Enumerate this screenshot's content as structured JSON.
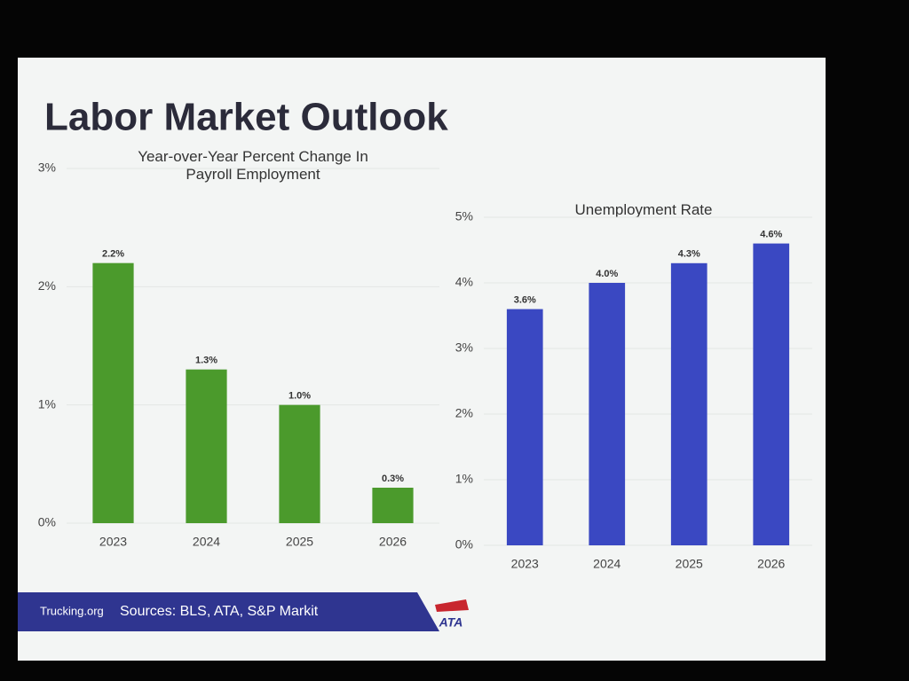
{
  "header": {
    "title": "Labor Market Outlook"
  },
  "footer": {
    "site": "Trucking.org",
    "sources": "Sources: BLS, ATA, S&P Markit",
    "logo": "ATA"
  },
  "chart_data": [
    {
      "type": "bar",
      "title": "Year-over-Year Percent Change In Payroll Employment",
      "categories": [
        "2023",
        "2024",
        "2025",
        "2026"
      ],
      "values": [
        2.2,
        1.3,
        1.0,
        0.3
      ],
      "value_labels": [
        "2.2%",
        "1.3%",
        "1.0%",
        "0.3%"
      ],
      "color": "#4b9a2c",
      "ylim": [
        0,
        3
      ],
      "yticks": [
        {
          "value": 0,
          "label": "0%"
        },
        {
          "value": 1,
          "label": "1%"
        },
        {
          "value": 2,
          "label": "2%"
        },
        {
          "value": 3,
          "label": "3%"
        }
      ],
      "grid": true
    },
    {
      "type": "bar",
      "title": "Unemployment Rate",
      "categories": [
        "2023",
        "2024",
        "2025",
        "2026"
      ],
      "values": [
        3.6,
        4.0,
        4.3,
        4.6
      ],
      "value_labels": [
        "3.6%",
        "4.0%",
        "4.3%",
        "4.6%"
      ],
      "color": "#3a48c2",
      "ylim": [
        0,
        5
      ],
      "yticks": [
        {
          "value": 0,
          "label": "0%"
        },
        {
          "value": 1,
          "label": "1%"
        },
        {
          "value": 2,
          "label": "2%"
        },
        {
          "value": 3,
          "label": "3%"
        },
        {
          "value": 4,
          "label": "4%"
        },
        {
          "value": 5,
          "label": "5%"
        }
      ],
      "grid": true
    }
  ]
}
